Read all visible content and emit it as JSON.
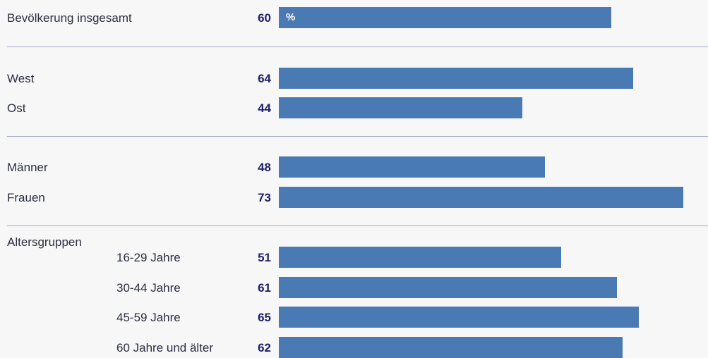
{
  "chart_data": {
    "type": "bar",
    "orientation": "horizontal",
    "unit_label": "%",
    "xlim": [
      0,
      73
    ],
    "groups": [
      {
        "heading": "",
        "items": [
          {
            "label": "Bevölkerung insgesamt",
            "value": 60
          }
        ]
      },
      {
        "heading": "",
        "items": [
          {
            "label": "West",
            "value": 64
          },
          {
            "label": "Ost",
            "value": 44
          }
        ]
      },
      {
        "heading": "",
        "items": [
          {
            "label": "Männer",
            "value": 48
          },
          {
            "label": "Frauen",
            "value": 73
          }
        ]
      },
      {
        "heading": "Altersgruppen",
        "items": [
          {
            "label": "16-29 Jahre",
            "value": 51
          },
          {
            "label": "30-44 Jahre",
            "value": 61
          },
          {
            "label": "45-59 Jahre",
            "value": 65
          },
          {
            "label": "60 Jahre und älter",
            "value": 62
          }
        ]
      }
    ]
  },
  "colors": {
    "bar": "#4a7ab3",
    "value_text": "#1f2168",
    "label_text": "#2b2f3f",
    "separator": "#9ea6bf"
  }
}
